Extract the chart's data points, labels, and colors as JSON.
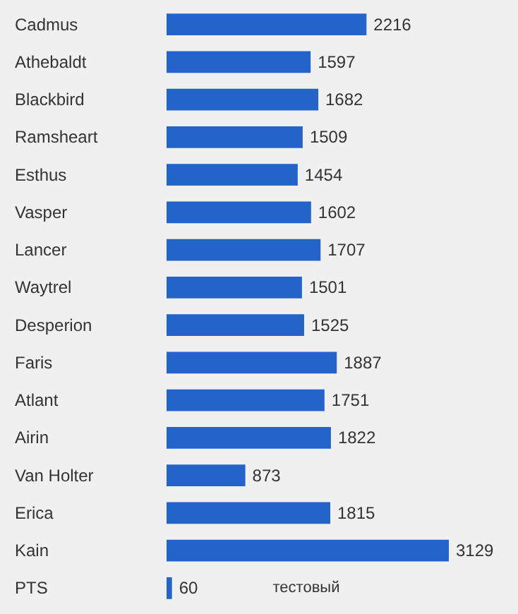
{
  "chart_data": {
    "type": "bar",
    "orientation": "horizontal",
    "categories": [
      "Cadmus",
      "Athebaldt",
      "Blackbird",
      "Ramsheart",
      "Esthus",
      "Vasper",
      "Lancer",
      "Waytrel",
      "Desperion",
      "Faris",
      "Atlant",
      "Airin",
      "Van Holter",
      "Erica",
      "Kain",
      "PTS"
    ],
    "values": [
      2216,
      1597,
      1682,
      1509,
      1454,
      1602,
      1707,
      1501,
      1525,
      1887,
      1751,
      1822,
      873,
      1815,
      3129,
      60
    ],
    "color": "#2463c9",
    "tick_labels": "y",
    "data_labels": true,
    "annotations": [
      "тестовый"
    ]
  }
}
